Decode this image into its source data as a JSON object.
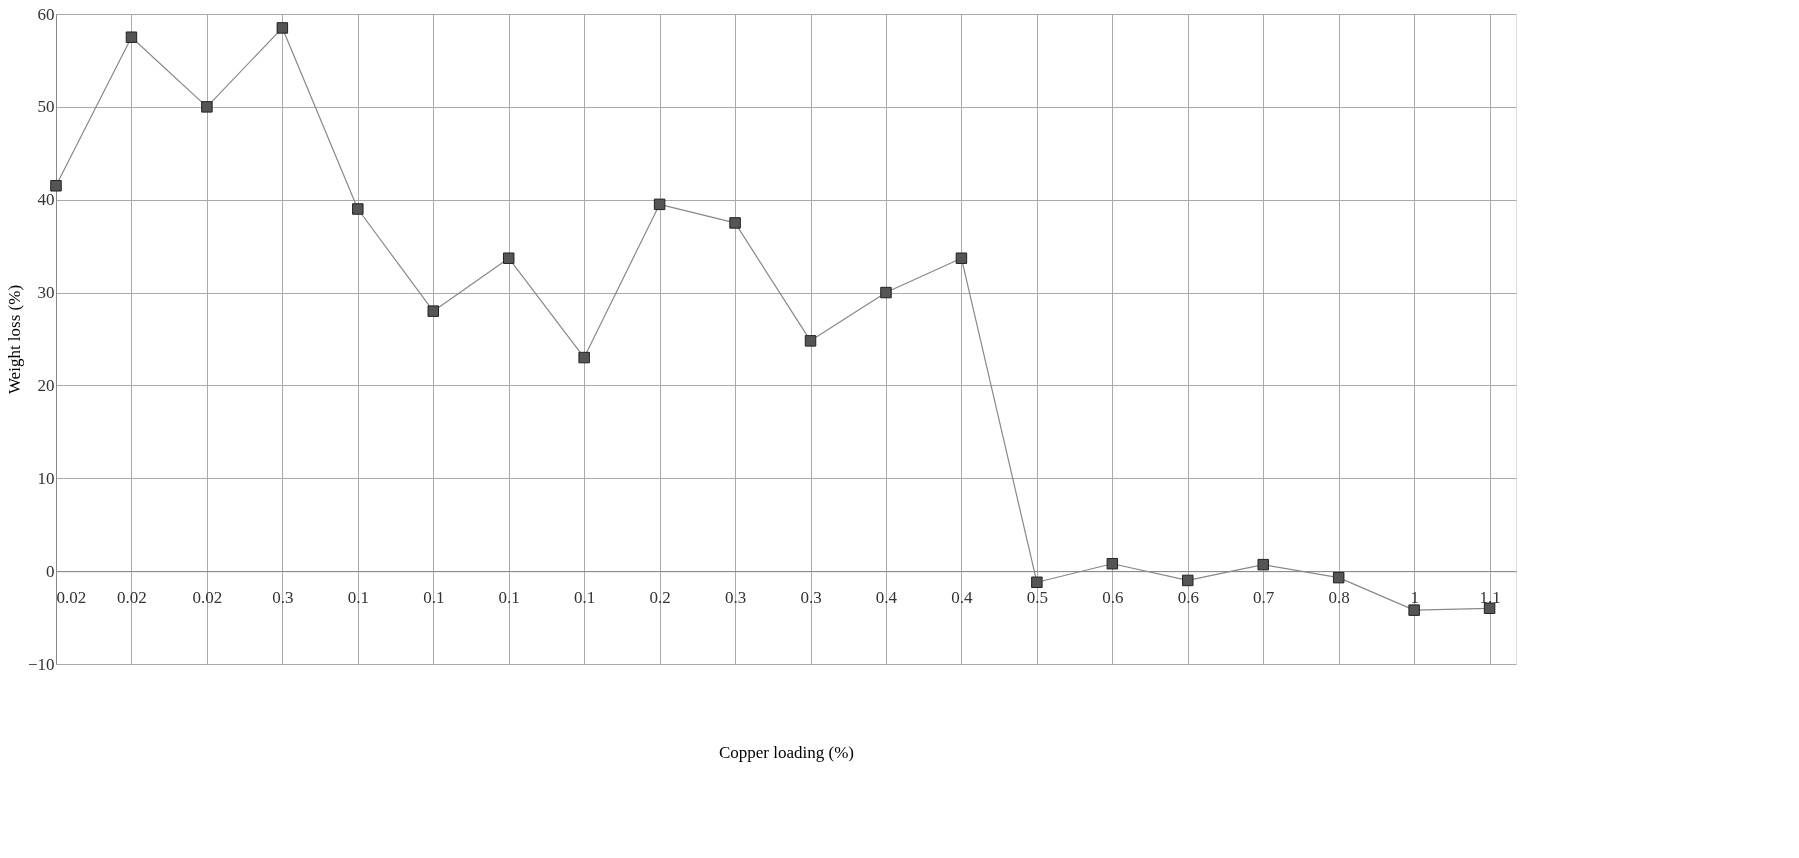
{
  "chart_data": {
    "type": "line",
    "xlabel": "Copper loading (%)",
    "ylabel": "Weight loss (%)",
    "categories": [
      "0.02",
      "0.02",
      "0.02",
      "0.3",
      "0.1",
      "0.1",
      "0.1",
      "0.1",
      "0.2",
      "0.3",
      "0.3",
      "0.4",
      "0.4",
      "0.5",
      "0.6",
      "0.6",
      "0.7",
      "0.8",
      "1",
      "1.1"
    ],
    "series": [
      {
        "color": "#555555",
        "values": [
          41.5,
          57.5,
          50,
          58.5,
          39,
          28,
          33.7,
          23,
          39.5,
          37.5,
          24.8,
          30,
          33.7,
          -1.2,
          0.8,
          -1,
          0.7,
          -0.7,
          -4.2,
          -4
        ]
      }
    ],
    "ylim": [
      -10,
      60
    ],
    "yticks": [
      -10,
      0,
      10,
      20,
      30,
      40,
      50,
      60
    ],
    "grid": true,
    "marker": "square",
    "line_style": "solid"
  }
}
